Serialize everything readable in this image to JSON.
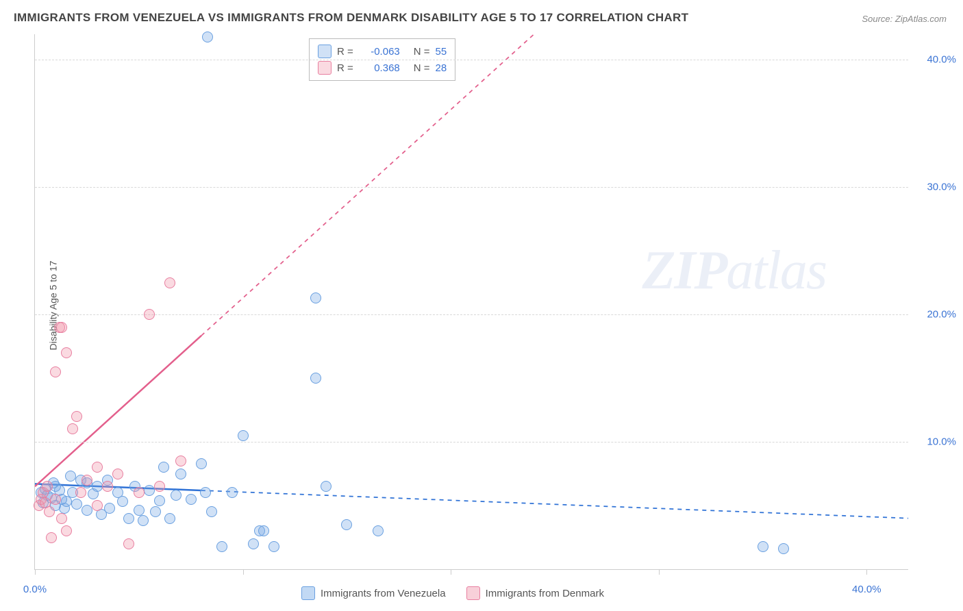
{
  "title": "IMMIGRANTS FROM VENEZUELA VS IMMIGRANTS FROM DENMARK DISABILITY AGE 5 TO 17 CORRELATION CHART",
  "source_label": "Source: ",
  "source_name": "ZipAtlas.com",
  "ylabel": "Disability Age 5 to 17",
  "watermark_a": "ZIP",
  "watermark_b": "atlas",
  "chart": {
    "type": "scatter",
    "xlim": [
      0,
      42
    ],
    "ylim": [
      0,
      42
    ],
    "yticks": [
      10,
      20,
      30,
      40
    ],
    "ytick_labels": [
      "10.0%",
      "20.0%",
      "30.0%",
      "40.0%"
    ],
    "xticks": [
      0,
      10,
      20,
      30,
      40
    ],
    "xtick_labels_first": "0.0%",
    "xtick_labels_last": "40.0%",
    "background_color": "#ffffff",
    "grid_color": "#d8d8d8",
    "axis_color": "#cccccc",
    "tick_label_color": "#3b74d4",
    "tick_fontsize": 15,
    "title_fontsize": 17,
    "title_color": "#444444",
    "marker_radius": 8,
    "marker_stroke_width": 1.5,
    "series": [
      {
        "name": "Immigrants from Venezuela",
        "fill": "rgba(120,170,230,0.35)",
        "stroke": "#6aa0e0",
        "line_color": "#2f72d6",
        "line_width": 2.5,
        "line_dash_after_x": 8,
        "R_label": "R = ",
        "R_value": "-0.063",
        "N_label": "N = ",
        "N_value": "55",
        "trend": {
          "x1": 0,
          "y1": 6.7,
          "x2": 42,
          "y2": 4.0
        },
        "points": [
          [
            0.3,
            6.0
          ],
          [
            0.5,
            6.3
          ],
          [
            0.6,
            5.8
          ],
          [
            0.8,
            5.6
          ],
          [
            1.0,
            6.5
          ],
          [
            1.2,
            6.2
          ],
          [
            1.4,
            4.8
          ],
          [
            1.5,
            5.3
          ],
          [
            1.7,
            7.3
          ],
          [
            1.8,
            6.0
          ],
          [
            2.0,
            5.1
          ],
          [
            2.2,
            7.0
          ],
          [
            2.5,
            6.8
          ],
          [
            2.5,
            4.6
          ],
          [
            2.8,
            5.9
          ],
          [
            3.0,
            6.5
          ],
          [
            3.2,
            4.3
          ],
          [
            3.5,
            7.0
          ],
          [
            3.6,
            4.8
          ],
          [
            4.0,
            6.0
          ],
          [
            4.2,
            5.3
          ],
          [
            4.5,
            4.0
          ],
          [
            4.8,
            6.5
          ],
          [
            5.0,
            4.6
          ],
          [
            5.2,
            3.8
          ],
          [
            5.5,
            6.2
          ],
          [
            5.8,
            4.5
          ],
          [
            6.0,
            5.4
          ],
          [
            6.2,
            8.0
          ],
          [
            6.5,
            4.0
          ],
          [
            6.8,
            5.8
          ],
          [
            7.0,
            7.5
          ],
          [
            7.5,
            5.5
          ],
          [
            8.0,
            8.3
          ],
          [
            8.2,
            6.0
          ],
          [
            8.5,
            4.5
          ],
          [
            9.0,
            1.8
          ],
          [
            9.5,
            6.0
          ],
          [
            10.0,
            10.5
          ],
          [
            10.5,
            2.0
          ],
          [
            10.8,
            3.0
          ],
          [
            11.0,
            3.0
          ],
          [
            11.5,
            1.8
          ],
          [
            13.5,
            15.0
          ],
          [
            13.5,
            21.3
          ],
          [
            14.0,
            6.5
          ],
          [
            15.0,
            3.5
          ],
          [
            16.5,
            3.0
          ],
          [
            8.3,
            41.8
          ],
          [
            35.0,
            1.8
          ],
          [
            36.0,
            1.6
          ],
          [
            1.0,
            5.0
          ],
          [
            1.3,
            5.5
          ],
          [
            0.4,
            5.2
          ],
          [
            0.9,
            6.8
          ]
        ]
      },
      {
        "name": "Immigrants from Denmark",
        "fill": "rgba(240,150,170,0.35)",
        "stroke": "#e87fa0",
        "line_color": "#e35f8c",
        "line_width": 2.5,
        "line_dash_after_x": 8,
        "R_label": "R = ",
        "R_value": "0.368",
        "N_label": "N = ",
        "N_value": "28",
        "trend": {
          "x1": 0,
          "y1": 6.5,
          "x2": 24,
          "y2": 42
        },
        "points": [
          [
            0.2,
            5.0
          ],
          [
            0.3,
            5.5
          ],
          [
            0.4,
            6.0
          ],
          [
            0.5,
            5.2
          ],
          [
            0.6,
            6.5
          ],
          [
            0.7,
            4.5
          ],
          [
            0.8,
            2.5
          ],
          [
            1.0,
            5.5
          ],
          [
            1.0,
            15.5
          ],
          [
            1.2,
            19.0
          ],
          [
            1.3,
            19.0
          ],
          [
            1.5,
            17.0
          ],
          [
            1.5,
            3.0
          ],
          [
            1.8,
            11.0
          ],
          [
            2.0,
            12.0
          ],
          [
            2.2,
            6.0
          ],
          [
            2.5,
            7.0
          ],
          [
            3.0,
            8.0
          ],
          [
            3.0,
            5.0
          ],
          [
            3.5,
            6.5
          ],
          [
            4.0,
            7.5
          ],
          [
            4.5,
            2.0
          ],
          [
            5.0,
            6.0
          ],
          [
            5.5,
            20.0
          ],
          [
            6.0,
            6.5
          ],
          [
            6.5,
            22.5
          ],
          [
            7.0,
            8.5
          ],
          [
            1.3,
            4.0
          ]
        ]
      }
    ],
    "legend_bottom": {
      "items": [
        {
          "swatch_fill": "rgba(120,170,230,0.45)",
          "swatch_stroke": "#6aa0e0",
          "label": "Immigrants from Venezuela"
        },
        {
          "swatch_fill": "rgba(240,150,170,0.45)",
          "swatch_stroke": "#e87fa0",
          "label": "Immigrants from Denmark"
        }
      ]
    }
  }
}
